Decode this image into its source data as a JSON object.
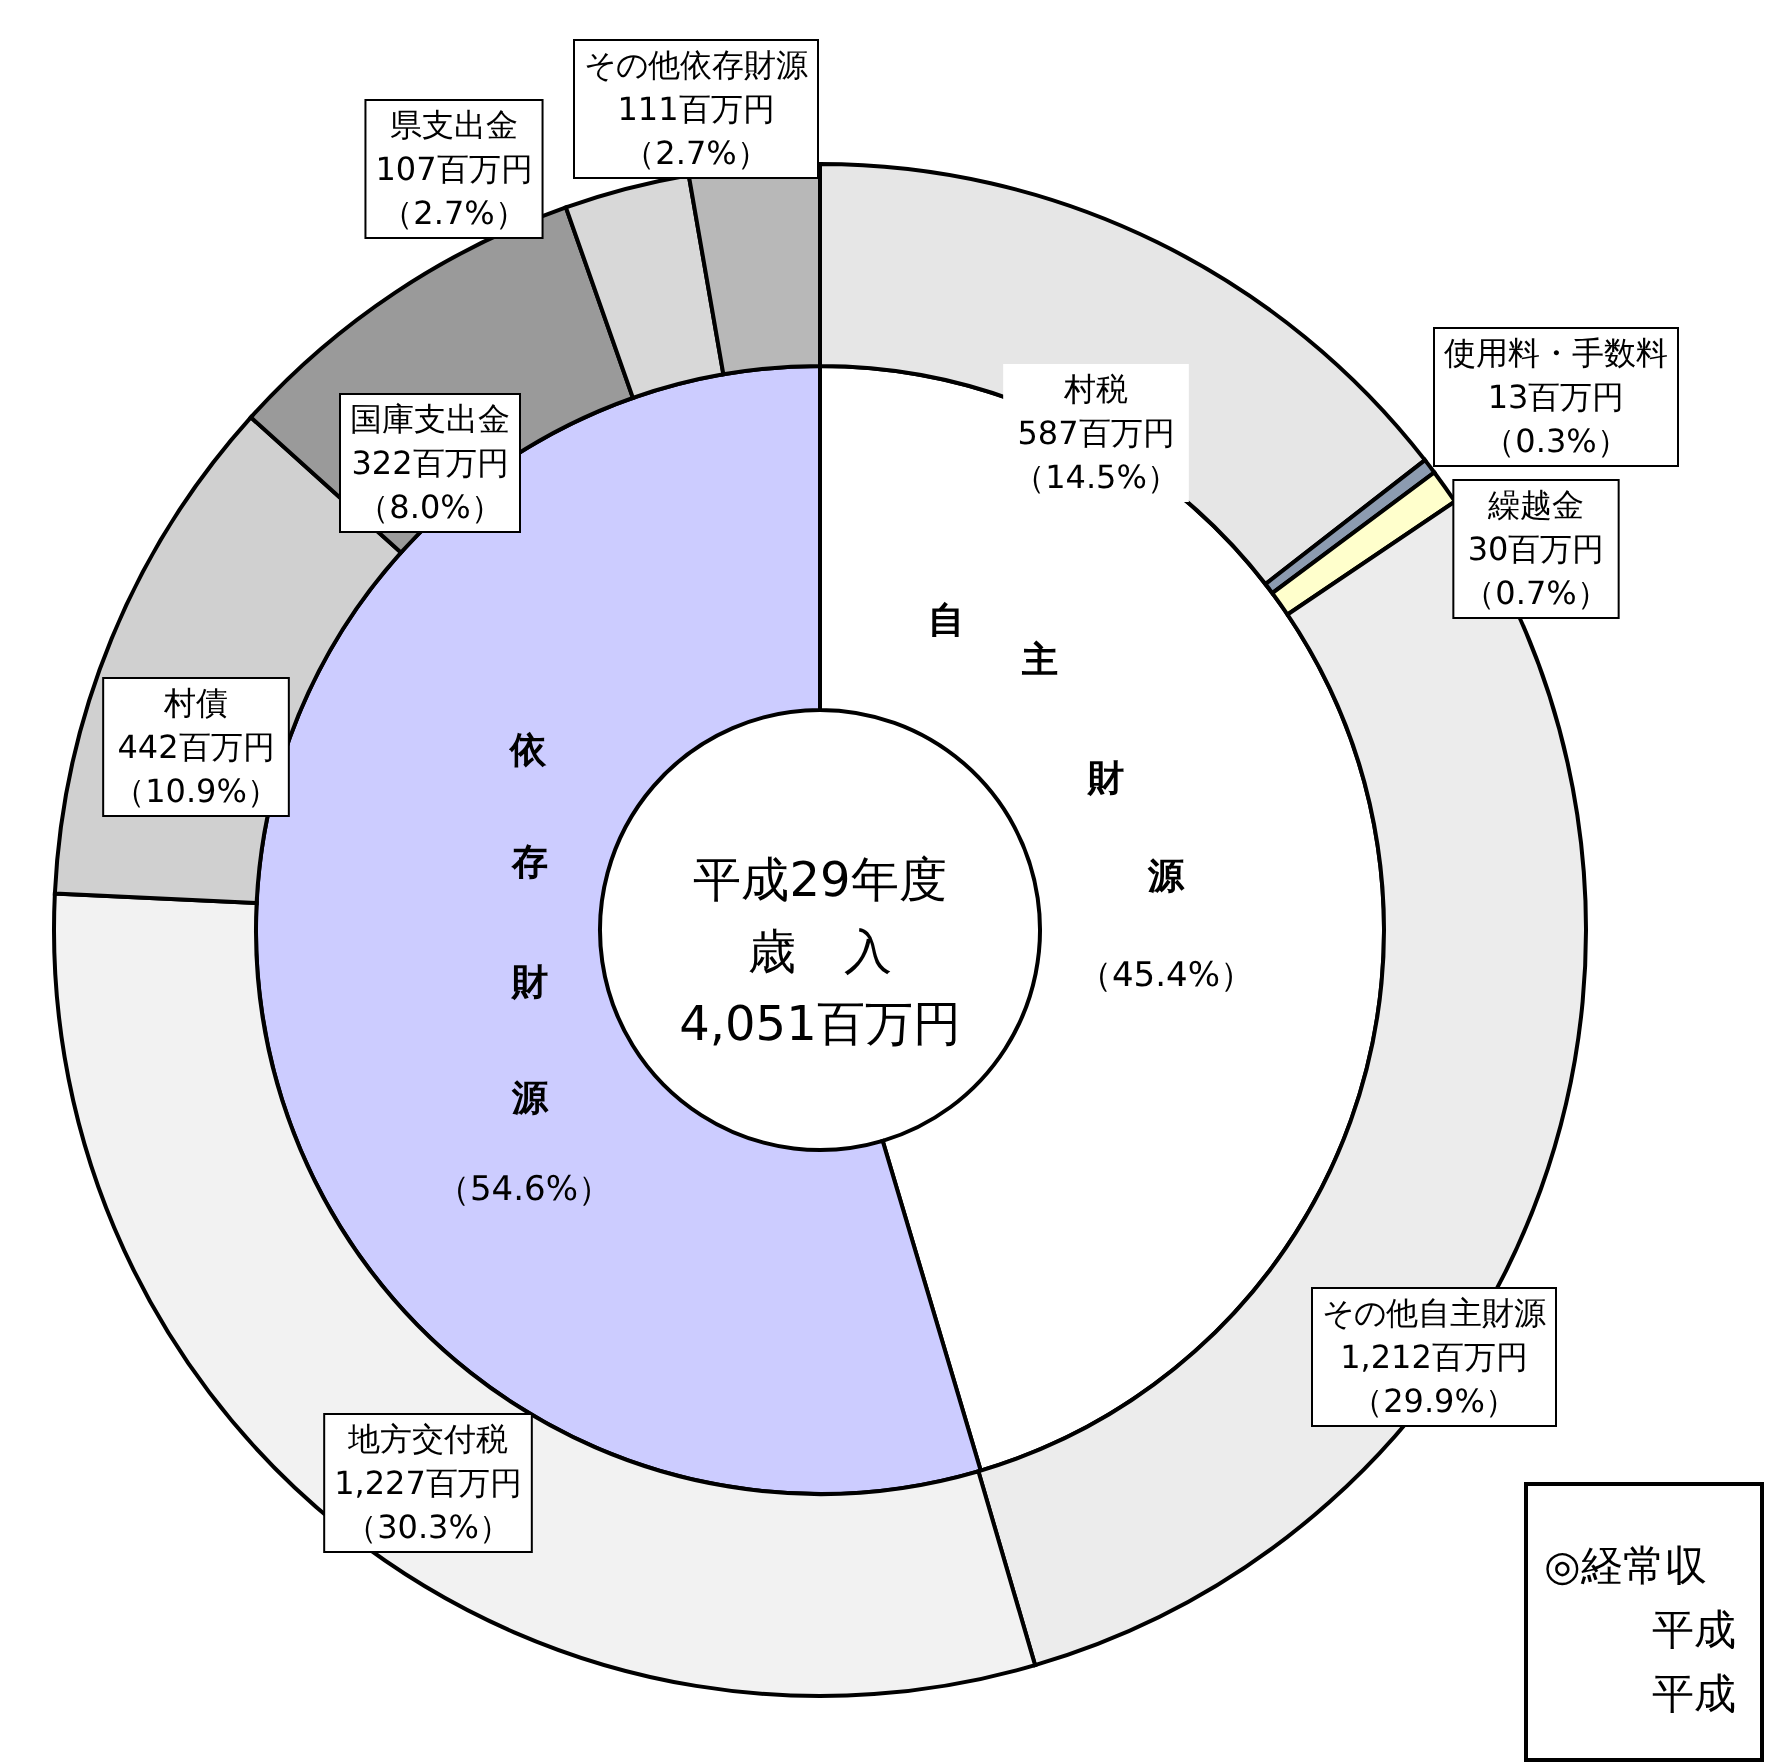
{
  "chart_data": [
    {
      "type": "donut",
      "categories": [
        "村税",
        "使用料・手数料",
        "繰越金",
        "その他自主財源",
        "地方交付税",
        "村債",
        "国庫支出金",
        "県支出金",
        "その他依存財源"
      ],
      "values": [
        587,
        13,
        30,
        1212,
        1227,
        442,
        322,
        107,
        111
      ],
      "colors": [
        "#e6e6e6",
        "#8c9bb0",
        "#ffffcc",
        "#ececec",
        "#f2f2f2",
        "#d0d0d0",
        "#9a9a9a",
        "#d8d8d8",
        "#b8b8b8"
      ],
      "value_labels": [
        "587百万円（14.5%）",
        "13百万円（0.3%）",
        "30百万円（0.7%）",
        "1,212百万円（29.9%）",
        "1,227百万円（30.3%）",
        "442百万円（10.9%）",
        "322百万円（8.0%）",
        "107百万円（2.7%）",
        "111百万円（2.7%）"
      ],
      "annotations": [
        "◎経常収",
        "平成",
        "平成"
      ]
    },
    {
      "type": "donut",
      "title": "平成29年度歳　入4,051百万円",
      "categories": [
        "自主財源",
        "依存財源"
      ],
      "values": [
        45.4,
        54.6
      ],
      "colors": [
        "#ffffff",
        "#ccccff"
      ],
      "value_labels": [
        "（45.4%）",
        "（54.6%）"
      ]
    }
  ]
}
